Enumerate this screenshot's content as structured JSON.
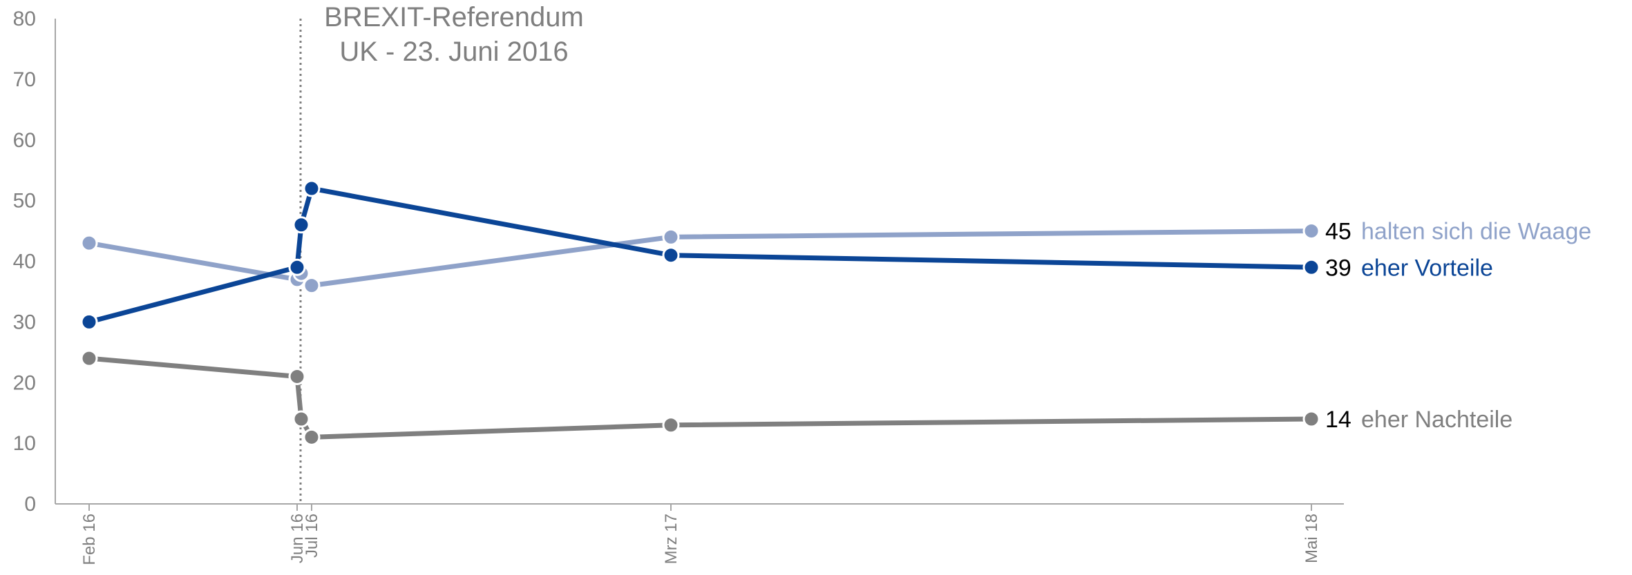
{
  "chart_data": {
    "type": "line",
    "title": "",
    "xlabel": "",
    "ylabel": "",
    "ylim": [
      0,
      80
    ],
    "yticks": [
      0,
      10,
      20,
      30,
      40,
      50,
      60,
      70,
      80
    ],
    "x": [
      "Feb 16",
      "Jun 16",
      "Jun 16 (a)",
      "Jun 16 (b)",
      "Jul 16",
      "Mrz 17",
      "Mai 18"
    ],
    "x_tick_labels": [
      "Feb 16",
      "Jun 16",
      "Jul 16",
      "Mrz 17",
      "Mai 18"
    ],
    "grid": false,
    "annotation": {
      "lines": [
        "BREXIT-Referendum",
        "UK - 23. Juni 2016"
      ],
      "at": "Jun 16"
    },
    "series": [
      {
        "name": "halten sich die Waage",
        "color": "#8fa2c9",
        "values": [
          43,
          37,
          38,
          null,
          36,
          44,
          45
        ],
        "end_value": "45"
      },
      {
        "name": "eher Vorteile",
        "color": "#0b4596",
        "values": [
          30,
          39,
          46,
          null,
          52,
          41,
          39
        ],
        "end_value": "39"
      },
      {
        "name": "eher Nachteile",
        "color": "#7f7f7f",
        "values": [
          24,
          21,
          14,
          null,
          11,
          13,
          14
        ],
        "end_value": "14"
      }
    ]
  }
}
